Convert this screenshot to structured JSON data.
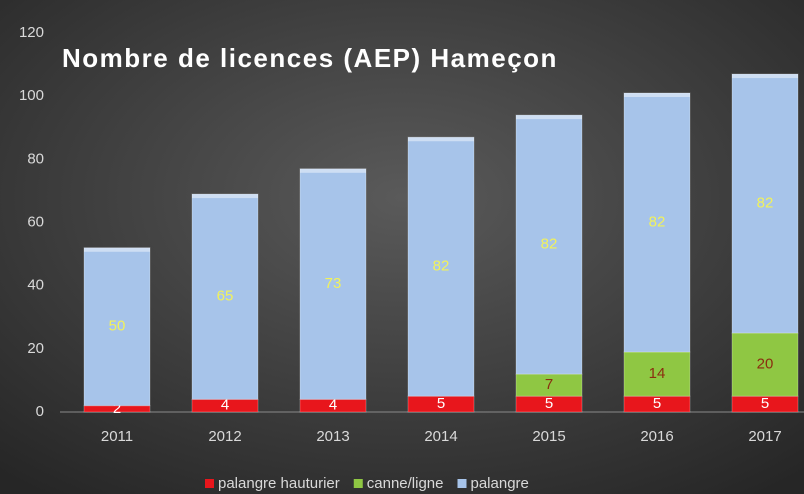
{
  "chart_data": {
    "type": "stacked_bar",
    "title": "Nombre de licences (AEP) Hameçon",
    "categories": [
      "2011",
      "2012",
      "2013",
      "2014",
      "2015",
      "2016",
      "2017"
    ],
    "series": [
      {
        "name": "palangre hauturier",
        "color": "#e8161c",
        "label_color": "#ffffff",
        "values": [
          2,
          4,
          4,
          5,
          5,
          5,
          5
        ]
      },
      {
        "name": "canne/ligne",
        "color": "#8fc743",
        "label_color": "#8b2e10",
        "values": [
          0,
          0,
          0,
          0,
          7,
          14,
          20
        ]
      },
      {
        "name": "palangre",
        "color": "#a7c4ea",
        "label_color": "#f2f25a",
        "values": [
          50,
          65,
          73,
          82,
          82,
          82,
          82
        ]
      }
    ],
    "ylim": [
      0,
      120
    ],
    "yticks": [
      0,
      20,
      40,
      60,
      80,
      100,
      120
    ],
    "grid": false,
    "legend": "bottom"
  }
}
